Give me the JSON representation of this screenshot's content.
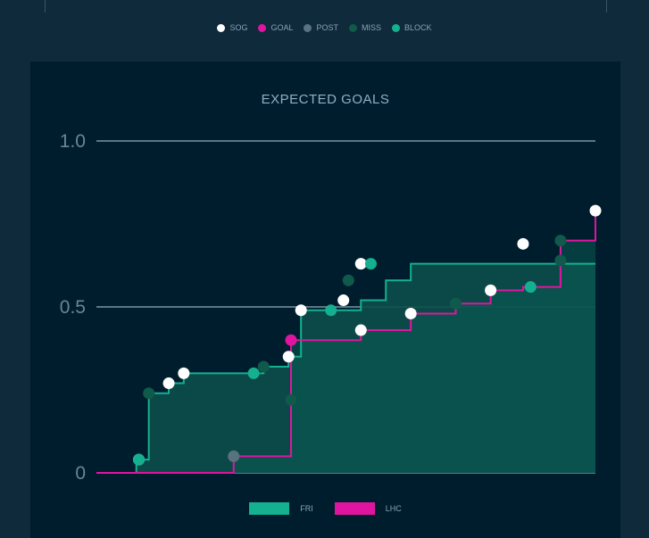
{
  "legend_top": [
    {
      "label": "SOG",
      "color": "#ffffff"
    },
    {
      "label": "GOAL",
      "color": "#e0159f"
    },
    {
      "label": "POST",
      "color": "#5a7280"
    },
    {
      "label": "MISS",
      "color": "#0f5a4a"
    },
    {
      "label": "BLOCK",
      "color": "#14b090"
    }
  ],
  "chart_data": {
    "type": "line",
    "title": "EXPECTED GOALS",
    "y_ticks": [
      "0",
      "0.5",
      "1.0"
    ],
    "ylim": [
      0,
      1.0
    ],
    "xlim": [
      0,
      100
    ],
    "grid": true,
    "series": [
      {
        "name": "FRI",
        "color": "#14b090",
        "x": [
          0,
          8,
          10.5,
          14.5,
          17.5,
          31.5,
          33.5,
          38.5,
          41,
          50,
          53,
          58,
          63,
          72,
          85.5,
          100
        ],
        "y": [
          0,
          0.04,
          0.24,
          0.27,
          0.3,
          0.3,
          0.32,
          0.35,
          0.49,
          0.49,
          0.52,
          0.58,
          0.63,
          0.63,
          0.63,
          0.63
        ],
        "shots": [
          {
            "x": 8.5,
            "y": 0.04,
            "type": "SOG"
          },
          {
            "x": 8.5,
            "y": 0.04,
            "type": "BLOCK"
          },
          {
            "x": 10.5,
            "y": 0.24,
            "type": "MISS"
          },
          {
            "x": 14.5,
            "y": 0.27,
            "type": "SOG"
          },
          {
            "x": 17.5,
            "y": 0.3,
            "type": "SOG"
          },
          {
            "x": 31.5,
            "y": 0.3,
            "type": "BLOCK"
          },
          {
            "x": 33.5,
            "y": 0.32,
            "type": "MISS"
          },
          {
            "x": 38.5,
            "y": 0.35,
            "type": "SOG"
          },
          {
            "x": 41,
            "y": 0.49,
            "type": "SOG"
          },
          {
            "x": 47,
            "y": 0.49,
            "type": "BLOCK"
          },
          {
            "x": 49.5,
            "y": 0.52,
            "type": "SOG"
          },
          {
            "x": 50.5,
            "y": 0.58,
            "type": "MISS"
          },
          {
            "x": 53,
            "y": 0.63,
            "type": "SOG"
          },
          {
            "x": 55,
            "y": 0.63,
            "type": "BLOCK"
          },
          {
            "x": 85.5,
            "y": 0.69,
            "type": "SOG"
          }
        ]
      },
      {
        "name": "LHC",
        "color": "#e0159f",
        "x": [
          0,
          27.5,
          39,
          53,
          63,
          72,
          79,
          85.5,
          93,
          100
        ],
        "y": [
          0,
          0.05,
          0.4,
          0.43,
          0.48,
          0.51,
          0.55,
          0.56,
          0.7,
          0.79
        ],
        "shots": [
          {
            "x": 27.5,
            "y": 0.05,
            "type": "POST"
          },
          {
            "x": 39,
            "y": 0.22,
            "type": "MISS"
          },
          {
            "x": 39,
            "y": 0.4,
            "type": "GOAL"
          },
          {
            "x": 53,
            "y": 0.43,
            "type": "SOG"
          },
          {
            "x": 63,
            "y": 0.48,
            "type": "SOG"
          },
          {
            "x": 72,
            "y": 0.51,
            "type": "MISS"
          },
          {
            "x": 79,
            "y": 0.55,
            "type": "SOG"
          },
          {
            "x": 87,
            "y": 0.56,
            "type": "BLOCK"
          },
          {
            "x": 93,
            "y": 0.64,
            "type": "MISS"
          },
          {
            "x": 93,
            "y": 0.7,
            "type": "MISS"
          },
          {
            "x": 100,
            "y": 0.79,
            "type": "SOG"
          }
        ]
      }
    ],
    "legend": [
      {
        "label": "FRI",
        "color": "#14b090"
      },
      {
        "label": "LHC",
        "color": "#e0159f"
      }
    ]
  }
}
